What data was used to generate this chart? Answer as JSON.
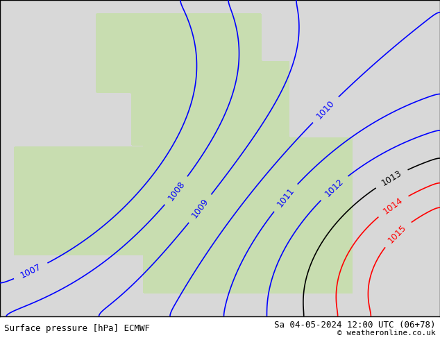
{
  "title_left": "Surface pressure [hPa] ECMWF",
  "title_right": "Sa 04-05-2024 12:00 UTC (06+78)",
  "copyright": "© weatheronline.co.uk",
  "bg_color": "#d8d8d8",
  "land_color": "#c8ddb0",
  "sea_color": "#d8d8d8",
  "blue_isobar_color": "#0000ff",
  "black_isobar_color": "#000000",
  "red_isobar_color": "#ff0000",
  "label_fontsize": 9,
  "footer_fontsize": 9,
  "figsize": [
    6.34,
    4.9
  ],
  "dpi": 100,
  "xlim": [
    -11,
    5
  ],
  "ylim": [
    49,
    61
  ],
  "blue_isobars": [
    1007,
    1008,
    1009,
    1010,
    1011,
    1012
  ],
  "black_isobars": [
    1013
  ],
  "red_isobars": [
    1014,
    1015
  ]
}
